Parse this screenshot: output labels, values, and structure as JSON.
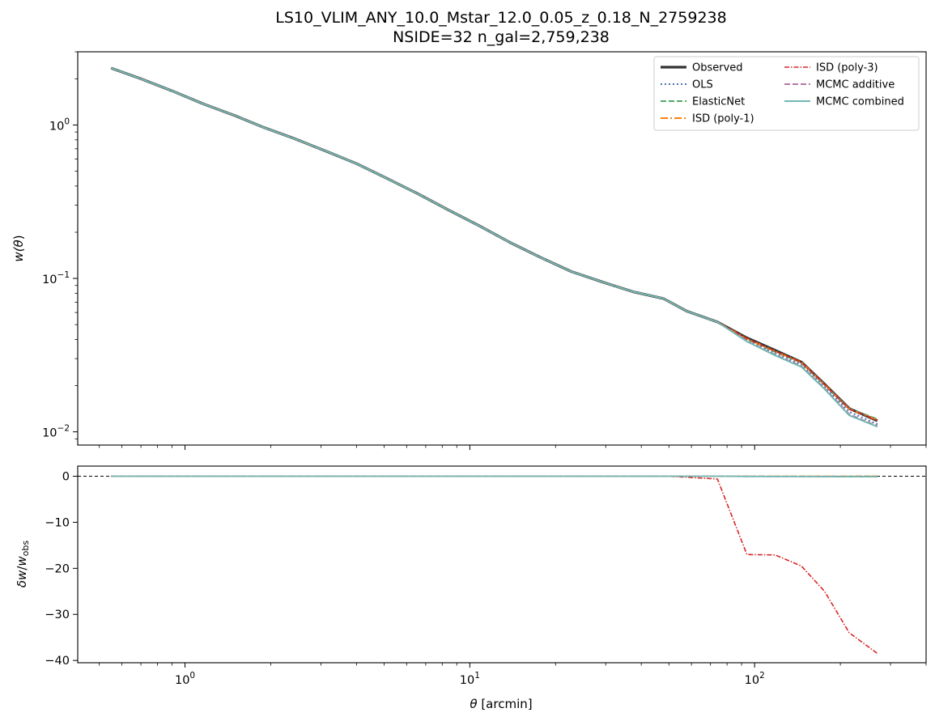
{
  "chart_data": [
    {
      "type": "line",
      "title": "LS10_VLIM_ANY_10.0_Mstar_12.0_0.05_z_0.18_N_2759238",
      "subtitle": "NSIDE=32  n_gal=2,759,238",
      "xscale": "log",
      "yscale": "log",
      "xlim": [
        0.42,
        400
      ],
      "ylim": [
        0.0082,
        3.0
      ],
      "xticks": [
        {
          "value": 1,
          "mantissa": "10",
          "exp": "0"
        },
        {
          "value": 10,
          "mantissa": "10",
          "exp": "1"
        },
        {
          "value": 100,
          "mantissa": "10",
          "exp": "2"
        }
      ],
      "yticks": [
        {
          "value": 0.01,
          "mantissa": "10",
          "exp": "−2"
        },
        {
          "value": 0.1,
          "mantissa": "10",
          "exp": "−1"
        },
        {
          "value": 1,
          "mantissa": "10",
          "exp": "0"
        }
      ],
      "ylabel": {
        "main": "w(",
        "theta": "θ",
        "close": ")"
      },
      "legend": {
        "position": "top-right",
        "columns": 2
      },
      "x": [
        0.55,
        0.7,
        0.9,
        1.15,
        1.5,
        1.9,
        2.4,
        3.1,
        4.0,
        5.1,
        6.5,
        8.4,
        10.8,
        13.8,
        17.7,
        22.7,
        29.1,
        37.3,
        47.8,
        58.0,
        74.0,
        94.0,
        118.0,
        146.0,
        176.0,
        215.0,
        270.0
      ],
      "series": [
        {
          "name": "Observed",
          "color": "#333333",
          "dash": "",
          "width": 3.2,
          "values": [
            2.35,
            2.0,
            1.67,
            1.38,
            1.15,
            0.96,
            0.82,
            0.68,
            0.56,
            0.45,
            0.36,
            0.28,
            0.22,
            0.172,
            0.137,
            0.111,
            0.095,
            0.082,
            0.074,
            0.061,
            0.052,
            0.041,
            0.034,
            0.0285,
            0.0205,
            0.0142,
            0.0118
          ]
        },
        {
          "name": "OLS",
          "color": "#4c72b0",
          "dash": "2,3",
          "width": 2,
          "values": [
            2.35,
            2.0,
            1.67,
            1.38,
            1.15,
            0.96,
            0.82,
            0.68,
            0.56,
            0.45,
            0.36,
            0.28,
            0.22,
            0.172,
            0.137,
            0.111,
            0.095,
            0.082,
            0.074,
            0.061,
            0.052,
            0.0395,
            0.0325,
            0.0275,
            0.0198,
            0.0135,
            0.0112
          ]
        },
        {
          "name": "ElasticNet",
          "color": "#55a868",
          "dash": "7,3",
          "width": 2,
          "values": [
            2.35,
            2.0,
            1.67,
            1.38,
            1.15,
            0.96,
            0.82,
            0.68,
            0.56,
            0.45,
            0.36,
            0.28,
            0.22,
            0.172,
            0.137,
            0.111,
            0.095,
            0.082,
            0.074,
            0.061,
            0.052,
            0.0402,
            0.0332,
            0.0282,
            0.0203,
            0.0142,
            0.0121
          ]
        },
        {
          "name": "ISD (poly-1)",
          "color": "#ff7f0e",
          "dash": "9,3,2,3",
          "width": 2,
          "values": [
            2.35,
            2.0,
            1.67,
            1.38,
            1.15,
            0.96,
            0.82,
            0.68,
            0.56,
            0.45,
            0.36,
            0.28,
            0.22,
            0.172,
            0.137,
            0.111,
            0.095,
            0.082,
            0.074,
            0.061,
            0.052,
            0.0405,
            0.0335,
            0.0284,
            0.0204,
            0.0141,
            0.0119
          ]
        },
        {
          "name": "ISD (poly-3)",
          "color": "#d62728",
          "dash": "6,2,1.5,2",
          "width": 1.6,
          "values": [
            2.35,
            2.0,
            1.67,
            1.38,
            1.15,
            0.96,
            0.82,
            0.68,
            0.56,
            0.45,
            0.36,
            0.28,
            0.22,
            0.172,
            0.137,
            0.111,
            0.095,
            0.082,
            0.074,
            0.061,
            0.052,
            0.0405,
            0.0335,
            0.0284,
            0.0204,
            0.0141,
            0.0119
          ]
        },
        {
          "name": "MCMC additive",
          "color": "#b279a2",
          "dash": "7,3",
          "width": 2,
          "values": [
            2.35,
            2.0,
            1.67,
            1.38,
            1.15,
            0.96,
            0.82,
            0.68,
            0.56,
            0.45,
            0.36,
            0.28,
            0.22,
            0.172,
            0.137,
            0.111,
            0.095,
            0.082,
            0.074,
            0.061,
            0.052,
            0.039,
            0.0318,
            0.0268,
            0.0192,
            0.013,
            0.0109
          ]
        },
        {
          "name": "MCMC combined",
          "color": "#72b7b2",
          "dash": "",
          "width": 2,
          "values": [
            2.35,
            2.0,
            1.67,
            1.38,
            1.15,
            0.96,
            0.82,
            0.68,
            0.56,
            0.45,
            0.36,
            0.28,
            0.22,
            0.172,
            0.137,
            0.111,
            0.095,
            0.082,
            0.074,
            0.061,
            0.052,
            0.0388,
            0.0315,
            0.0265,
            0.019,
            0.0128,
            0.0108
          ]
        }
      ]
    },
    {
      "type": "line",
      "xscale": "log",
      "xlim": [
        0.42,
        400
      ],
      "ylim": [
        -40.5,
        2.2
      ],
      "yticks": [
        0,
        -10,
        -20,
        -30,
        -40
      ],
      "xticks": [
        {
          "value": 1,
          "mantissa": "10",
          "exp": "0"
        },
        {
          "value": 10,
          "mantissa": "10",
          "exp": "1"
        },
        {
          "value": 100,
          "mantissa": "10",
          "exp": "2"
        }
      ],
      "xlabel": {
        "theta": "θ",
        "rest": " [arcmin]"
      },
      "ylabel": {
        "delta": "δ",
        "w": "w",
        "slash": "/",
        "w2": "w",
        "sub": "obs"
      },
      "reference_line": 0,
      "x": [
        0.55,
        1.0,
        10.0,
        50.0,
        74.0,
        94.0,
        118.0,
        146.0,
        176.0,
        215.0,
        270.0
      ],
      "series": [
        {
          "name": "OLS",
          "color": "#4c72b0",
          "dash": "2,3",
          "width": 1.6,
          "values": [
            0,
            0,
            0,
            0,
            0,
            -0.02,
            -0.03,
            -0.04,
            -0.05,
            -0.06,
            -0.08
          ]
        },
        {
          "name": "ElasticNet",
          "color": "#55a868",
          "dash": "7,3",
          "width": 1.6,
          "values": [
            0,
            0,
            0,
            0,
            0,
            -0.01,
            -0.01,
            -0.01,
            -0.02,
            0.0,
            0.02
          ]
        },
        {
          "name": "ISD (poly-1)",
          "color": "#ff7f0e",
          "dash": "9,3,2,3",
          "width": 1.6,
          "values": [
            0,
            0,
            0,
            0,
            0,
            0,
            0,
            0,
            0,
            0,
            0
          ]
        },
        {
          "name": "ISD (poly-3)",
          "color": "#d62728",
          "dash": "6,2,1.5,2",
          "width": 1.6,
          "values": [
            0,
            0,
            0,
            0,
            -0.6,
            -17.0,
            -17.1,
            -19.5,
            -25.0,
            -34.0,
            -38.5
          ]
        },
        {
          "name": "MCMC additive",
          "color": "#b279a2",
          "dash": "7,3",
          "width": 1.6,
          "values": [
            0,
            0,
            0,
            0,
            0,
            -0.04,
            -0.05,
            -0.06,
            -0.07,
            -0.09,
            -0.1
          ]
        },
        {
          "name": "MCMC combined",
          "color": "#72b7b2",
          "dash": "",
          "width": 1.8,
          "values": [
            0,
            0,
            0,
            0,
            0,
            -0.05,
            -0.06,
            -0.07,
            -0.08,
            -0.1,
            -0.11
          ]
        }
      ]
    }
  ]
}
